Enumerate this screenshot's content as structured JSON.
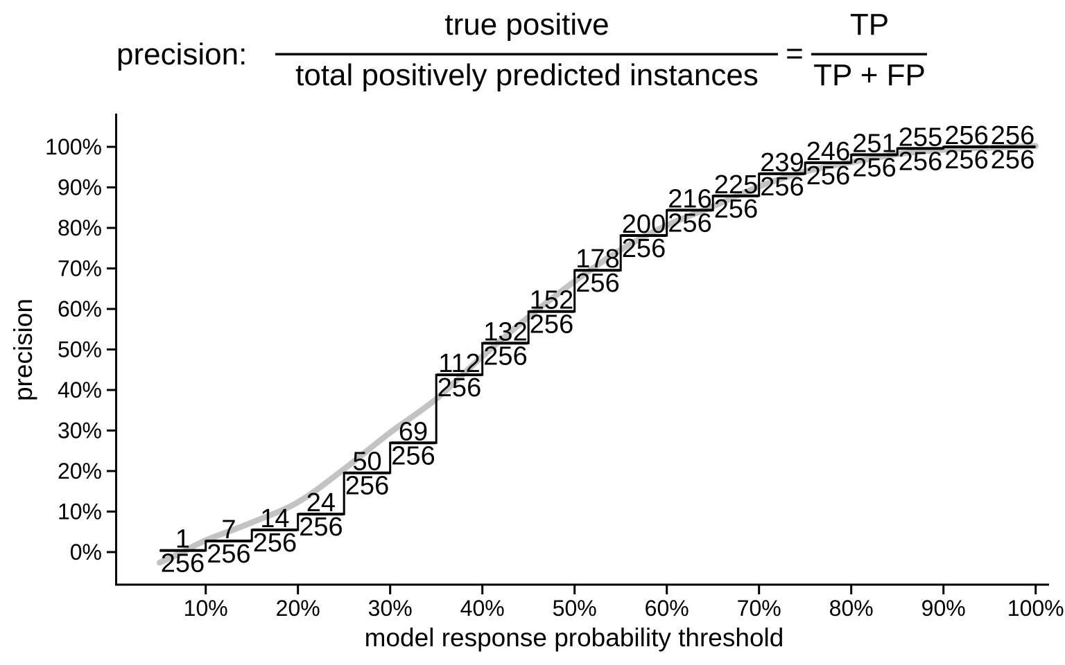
{
  "title": {
    "prefix": "precision:",
    "formula": {
      "numerator": "true positive",
      "denominator": "total positively predicted instances",
      "equals": "=",
      "abbrev_numerator": "TP",
      "abbrev_denominator": "TP + FP"
    }
  },
  "colors": {
    "step_line": "#000000",
    "smooth_curve": "#c3c3c3",
    "axis": "#000000",
    "text": "#000000",
    "background": "#ffffff"
  },
  "chart_data": {
    "type": "line",
    "subtype": "step-function-with-fraction-labels-and-smooth-trend",
    "xlabel": "model response probability threshold",
    "ylabel": "precision",
    "xlim_pct": [
      0,
      100
    ],
    "ylim_pct": [
      0,
      100
    ],
    "grid": "off",
    "x_ticks": [
      {
        "value": 10,
        "label": "10%"
      },
      {
        "value": 20,
        "label": "20%"
      },
      {
        "value": 30,
        "label": "30%"
      },
      {
        "value": 40,
        "label": "40%"
      },
      {
        "value": 50,
        "label": "50%"
      },
      {
        "value": 60,
        "label": "60%"
      },
      {
        "value": 70,
        "label": "70%"
      },
      {
        "value": 80,
        "label": "80%"
      },
      {
        "value": 90,
        "label": "90%"
      },
      {
        "value": 100,
        "label": "100%"
      }
    ],
    "y_ticks": [
      {
        "value": 0,
        "label": "0%"
      },
      {
        "value": 10,
        "label": "10%"
      },
      {
        "value": 20,
        "label": "20%"
      },
      {
        "value": 30,
        "label": "30%"
      },
      {
        "value": 40,
        "label": "40%"
      },
      {
        "value": 50,
        "label": "50%"
      },
      {
        "value": 60,
        "label": "60%"
      },
      {
        "value": 70,
        "label": "70%"
      },
      {
        "value": 80,
        "label": "80%"
      },
      {
        "value": 90,
        "label": "90%"
      },
      {
        "value": 100,
        "label": "100%"
      }
    ],
    "denominator": 256,
    "steps": [
      {
        "threshold_from_pct": 5,
        "threshold_to_pct": 10,
        "true_positives": 1
      },
      {
        "threshold_from_pct": 10,
        "threshold_to_pct": 15,
        "true_positives": 7
      },
      {
        "threshold_from_pct": 15,
        "threshold_to_pct": 20,
        "true_positives": 14
      },
      {
        "threshold_from_pct": 20,
        "threshold_to_pct": 25,
        "true_positives": 24
      },
      {
        "threshold_from_pct": 25,
        "threshold_to_pct": 30,
        "true_positives": 50
      },
      {
        "threshold_from_pct": 30,
        "threshold_to_pct": 35,
        "true_positives": 69
      },
      {
        "threshold_from_pct": 35,
        "threshold_to_pct": 40,
        "true_positives": 112
      },
      {
        "threshold_from_pct": 40,
        "threshold_to_pct": 45,
        "true_positives": 132
      },
      {
        "threshold_from_pct": 45,
        "threshold_to_pct": 50,
        "true_positives": 152
      },
      {
        "threshold_from_pct": 50,
        "threshold_to_pct": 55,
        "true_positives": 178
      },
      {
        "threshold_from_pct": 55,
        "threshold_to_pct": 60,
        "true_positives": 200
      },
      {
        "threshold_from_pct": 60,
        "threshold_to_pct": 65,
        "true_positives": 216
      },
      {
        "threshold_from_pct": 65,
        "threshold_to_pct": 70,
        "true_positives": 225
      },
      {
        "threshold_from_pct": 70,
        "threshold_to_pct": 75,
        "true_positives": 239
      },
      {
        "threshold_from_pct": 75,
        "threshold_to_pct": 80,
        "true_positives": 246
      },
      {
        "threshold_from_pct": 80,
        "threshold_to_pct": 85,
        "true_positives": 251
      },
      {
        "threshold_from_pct": 85,
        "threshold_to_pct": 90,
        "true_positives": 255
      },
      {
        "threshold_from_pct": 90,
        "threshold_to_pct": 95,
        "true_positives": 256
      },
      {
        "threshold_from_pct": 95,
        "threshold_to_pct": 100,
        "true_positives": 256
      }
    ],
    "smooth_curve": [
      [
        5,
        -2.6
      ],
      [
        7.5,
        0
      ],
      [
        10,
        2.9
      ],
      [
        15,
        7.3
      ],
      [
        20,
        12.3
      ],
      [
        25,
        20.5
      ],
      [
        30,
        29.5
      ],
      [
        35,
        37.8
      ],
      [
        40,
        48.3
      ],
      [
        45,
        58.0
      ],
      [
        50,
        66.8
      ],
      [
        55,
        74.6
      ],
      [
        60,
        80.6
      ],
      [
        65,
        85.3
      ],
      [
        70,
        90.2
      ],
      [
        75,
        93.9
      ],
      [
        80,
        96.2
      ],
      [
        85,
        98.2
      ],
      [
        90,
        99.3
      ],
      [
        95,
        99.8
      ],
      [
        100,
        100.2
      ]
    ]
  }
}
